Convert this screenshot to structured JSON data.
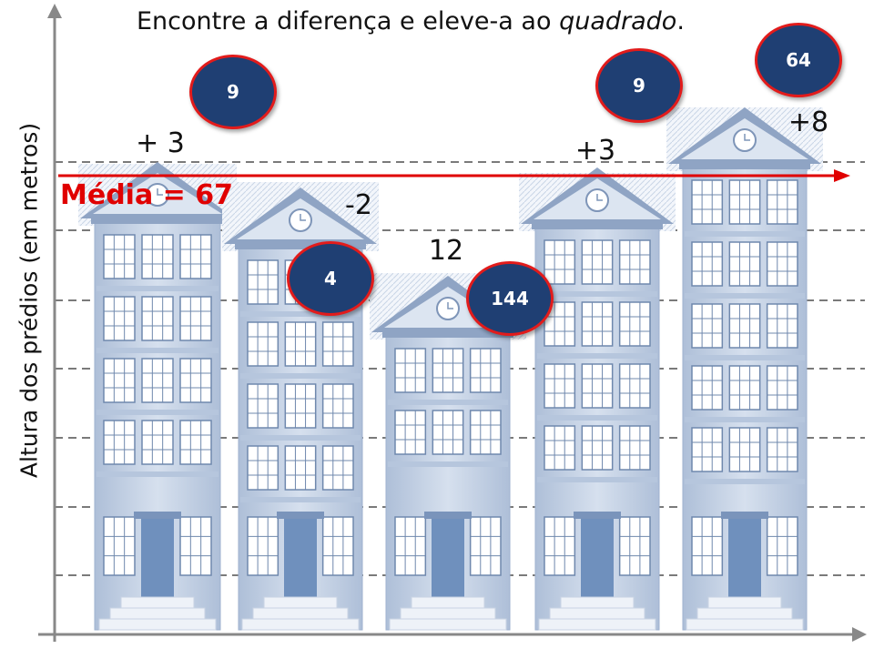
{
  "title": {
    "before": "Encontre a diferença e eleve-a ao ",
    "emphasis": "quadrado",
    "after": "."
  },
  "y_axis_label": "Altura dos prédios (em metros)",
  "mean": {
    "label": "Média = 67",
    "value": 67
  },
  "buildings": [
    {
      "difference": "+ 3",
      "square": "9"
    },
    {
      "difference": "-2",
      "square": "4"
    },
    {
      "difference": "12",
      "square": "144"
    },
    {
      "difference": "+3",
      "square": "9"
    },
    {
      "difference": "+8",
      "square": "64"
    }
  ],
  "colors": {
    "mean_line": "#e00000",
    "badge_fill": "#1f3f73",
    "badge_border": "#e21b1b",
    "building_body": "#c5d3e6",
    "building_roof": "#8fa4c4",
    "door": "#6f90bd"
  }
}
